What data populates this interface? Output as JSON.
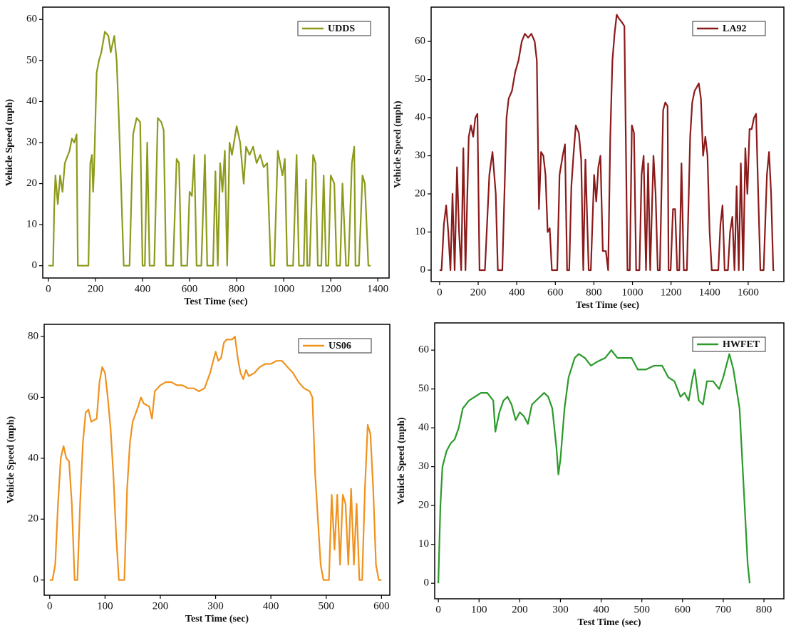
{
  "chart_data": [
    {
      "type": "line",
      "xlabel": "Test Time (sec)",
      "ylabel": "Vehicle Speed (mph)",
      "legend": "upper right",
      "xlim": [
        -24,
        1448
      ],
      "ylim": [
        -3,
        63
      ],
      "xticks": [
        0,
        200,
        400,
        600,
        800,
        1000,
        1200,
        1400
      ],
      "yticks": [
        0,
        10,
        20,
        30,
        40,
        50,
        60
      ],
      "x": [
        0,
        20,
        25,
        30,
        40,
        50,
        60,
        70,
        90,
        100,
        110,
        120,
        125,
        170,
        178,
        185,
        190,
        195,
        205,
        215,
        225,
        240,
        255,
        265,
        280,
        290,
        300,
        320,
        345,
        360,
        375,
        390,
        400,
        410,
        420,
        430,
        450,
        465,
        480,
        490,
        500,
        530,
        545,
        555,
        565,
        590,
        600,
        610,
        620,
        630,
        650,
        665,
        675,
        700,
        710,
        720,
        730,
        740,
        750,
        760,
        770,
        780,
        800,
        815,
        830,
        840,
        855,
        870,
        885,
        900,
        915,
        930,
        945,
        960,
        975,
        985,
        995,
        1005,
        1015,
        1040,
        1055,
        1065,
        1085,
        1095,
        1100,
        1110,
        1125,
        1135,
        1145,
        1160,
        1170,
        1180,
        1190,
        1200,
        1215,
        1225,
        1240,
        1250,
        1265,
        1275,
        1290,
        1300,
        1305,
        1320,
        1335,
        1345,
        1360,
        1370
      ],
      "series": [
        {
          "name": "UDDS",
          "color": "#8d9a1b",
          "values": [
            0,
            0,
            15,
            22,
            15,
            22,
            18,
            25,
            28,
            31,
            30,
            32,
            0,
            0,
            25,
            27,
            18,
            25,
            47,
            50,
            52,
            57,
            56,
            52,
            56,
            50,
            35,
            0,
            0,
            32,
            36,
            35,
            0,
            0,
            30,
            0,
            0,
            36,
            35,
            33,
            0,
            0,
            26,
            25,
            0,
            0,
            18,
            17,
            27,
            0,
            0,
            27,
            0,
            0,
            23,
            0,
            25,
            18,
            28,
            0,
            30,
            27,
            34,
            30,
            20,
            29,
            27,
            29,
            25,
            27,
            24,
            25,
            0,
            0,
            28,
            25,
            22,
            26,
            0,
            0,
            27,
            0,
            0,
            21,
            0,
            0,
            27,
            25,
            0,
            0,
            22,
            0,
            0,
            22,
            20,
            0,
            0,
            20,
            0,
            0,
            25,
            29,
            0,
            0,
            22,
            20,
            0,
            0
          ]
        }
      ]
    },
    {
      "type": "line",
      "xlabel": "Test Time (sec)",
      "ylabel": "Vehicle Speed (mph)",
      "legend": "upper right",
      "xlim": [
        -44,
        1785
      ],
      "ylim": [
        -3,
        69
      ],
      "xticks": [
        0,
        200,
        400,
        600,
        800,
        1000,
        1200,
        1400,
        1600
      ],
      "yticks": [
        0,
        10,
        20,
        30,
        40,
        50,
        60
      ],
      "x": [
        0,
        10,
        22,
        34,
        45,
        56,
        67,
        78,
        90,
        101,
        112,
        123,
        134,
        151,
        162,
        174,
        185,
        196,
        207,
        235,
        258,
        274,
        291,
        302,
        325,
        347,
        358,
        375,
        392,
        409,
        426,
        442,
        459,
        476,
        493,
        504,
        515,
        526,
        538,
        549,
        560,
        571,
        582,
        610,
        622,
        638,
        650,
        661,
        672,
        683,
        694,
        706,
        722,
        734,
        745,
        756,
        773,
        784,
        801,
        812,
        823,
        834,
        846,
        862,
        874,
        885,
        896,
        907,
        918,
        930,
        946,
        958,
        974,
        986,
        997,
        1008,
        1019,
        1036,
        1047,
        1058,
        1070,
        1081,
        1092,
        1109,
        1120,
        1131,
        1142,
        1159,
        1170,
        1182,
        1187,
        1198,
        1210,
        1221,
        1232,
        1243,
        1254,
        1266,
        1282,
        1299,
        1310,
        1322,
        1333,
        1344,
        1355,
        1366,
        1378,
        1389,
        1400,
        1411,
        1445,
        1456,
        1467,
        1478,
        1495,
        1506,
        1518,
        1529,
        1540,
        1551,
        1562,
        1574,
        1585,
        1596,
        1607,
        1618,
        1630,
        1641,
        1652,
        1663,
        1680,
        1697,
        1708,
        1719,
        1730,
        1735
      ],
      "series": [
        {
          "name": "LA92",
          "color": "#8b1a1a",
          "values": [
            0,
            0,
            12,
            17,
            10,
            0,
            20,
            0,
            27,
            10,
            0,
            32,
            0,
            35,
            38,
            35,
            40,
            41,
            0,
            0,
            25,
            31,
            20,
            0,
            0,
            40,
            45,
            47,
            52,
            55,
            60,
            62,
            61,
            62,
            60,
            55,
            16,
            31,
            30,
            25,
            10,
            11,
            0,
            0,
            25,
            30,
            33,
            0,
            0,
            22,
            30,
            38,
            36,
            29,
            0,
            29,
            0,
            0,
            25,
            18,
            27,
            30,
            5,
            5,
            0,
            35,
            55,
            62,
            67,
            66,
            65,
            64,
            0,
            0,
            38,
            36,
            0,
            0,
            25,
            30,
            0,
            28,
            0,
            30,
            20,
            0,
            0,
            42,
            44,
            43,
            0,
            0,
            16,
            16,
            0,
            0,
            28,
            0,
            0,
            35,
            44,
            47,
            48,
            49,
            45,
            30,
            35,
            30,
            10,
            0,
            0,
            12,
            17,
            0,
            0,
            10,
            14,
            0,
            22,
            0,
            28,
            0,
            32,
            20,
            37,
            37,
            40,
            41,
            20,
            0,
            0,
            25,
            31,
            20,
            0,
            0
          ]
        }
      ]
    },
    {
      "type": "line",
      "xlabel": "Test Time (sec)",
      "ylabel": "Vehicle Speed (mph)",
      "legend": "upper right",
      "xlim": [
        -10,
        615
      ],
      "ylim": [
        -5,
        84
      ],
      "xticks": [
        0,
        100,
        200,
        300,
        400,
        500,
        600
      ],
      "yticks": [
        0,
        20,
        40,
        60,
        80
      ],
      "x": [
        0,
        5,
        10,
        15,
        20,
        25,
        30,
        35,
        40,
        45,
        50,
        55,
        60,
        65,
        70,
        75,
        85,
        90,
        95,
        100,
        105,
        110,
        115,
        120,
        125,
        135,
        140,
        145,
        150,
        160,
        165,
        170,
        180,
        185,
        190,
        200,
        210,
        220,
        230,
        240,
        250,
        260,
        270,
        280,
        290,
        300,
        305,
        310,
        315,
        320,
        330,
        335,
        340,
        345,
        350,
        355,
        360,
        370,
        380,
        390,
        400,
        410,
        420,
        430,
        440,
        450,
        460,
        470,
        475,
        480,
        485,
        490,
        495,
        505,
        510,
        515,
        520,
        525,
        530,
        535,
        540,
        545,
        550,
        555,
        560,
        565,
        570,
        575,
        580,
        585,
        590,
        595,
        600
      ],
      "series": [
        {
          "name": "US06",
          "color": "#f0921e",
          "values": [
            0,
            0,
            5,
            25,
            40,
            44,
            40,
            39,
            25,
            0,
            0,
            25,
            45,
            55,
            56,
            52,
            53,
            65,
            70,
            68,
            60,
            50,
            35,
            15,
            0,
            0,
            30,
            45,
            52,
            57,
            60,
            58,
            57,
            53,
            62,
            64,
            65,
            65,
            64,
            64,
            63,
            63,
            62,
            63,
            68,
            75,
            72,
            73,
            78,
            79,
            79,
            80,
            73,
            68,
            66,
            69,
            67,
            68,
            70,
            71,
            71,
            72,
            72,
            70,
            68,
            65,
            63,
            62,
            60,
            35,
            20,
            5,
            0,
            0,
            28,
            10,
            28,
            5,
            28,
            25,
            5,
            30,
            5,
            25,
            0,
            0,
            30,
            51,
            48,
            30,
            5,
            0,
            0
          ]
        }
      ]
    },
    {
      "type": "line",
      "xlabel": "Test Time (sec)",
      "ylabel": "Vehicle Speed (mph)",
      "legend": "upper right",
      "xlim": [
        -9,
        849
      ],
      "ylim": [
        -4,
        67
      ],
      "xticks": [
        0,
        100,
        200,
        300,
        400,
        500,
        600,
        700,
        800
      ],
      "yticks": [
        0,
        10,
        20,
        30,
        40,
        50,
        60
      ],
      "x": [
        0,
        5,
        10,
        20,
        30,
        40,
        50,
        60,
        75,
        90,
        105,
        120,
        135,
        140,
        150,
        160,
        170,
        180,
        190,
        200,
        210,
        220,
        230,
        240,
        250,
        260,
        270,
        280,
        290,
        295,
        300,
        310,
        320,
        335,
        345,
        360,
        375,
        390,
        410,
        425,
        440,
        460,
        475,
        490,
        510,
        530,
        550,
        565,
        580,
        595,
        605,
        615,
        625,
        630,
        640,
        650,
        660,
        675,
        690,
        700,
        715,
        725,
        740,
        750,
        760,
        765
      ],
      "series": [
        {
          "name": "HWFET",
          "color": "#2a9a2a",
          "values": [
            0,
            20,
            30,
            34,
            36,
            37,
            40,
            45,
            47,
            48,
            49,
            49,
            47,
            39,
            44,
            47,
            48,
            46,
            42,
            44,
            43,
            41,
            46,
            47,
            48,
            49,
            48,
            45,
            35,
            28,
            32,
            45,
            53,
            58,
            59,
            58,
            56,
            57,
            58,
            60,
            58,
            58,
            58,
            55,
            55,
            56,
            56,
            53,
            52,
            48,
            49,
            47,
            53,
            55,
            47,
            46,
            52,
            52,
            50,
            53,
            59,
            55,
            45,
            25,
            5,
            0
          ]
        }
      ]
    }
  ]
}
